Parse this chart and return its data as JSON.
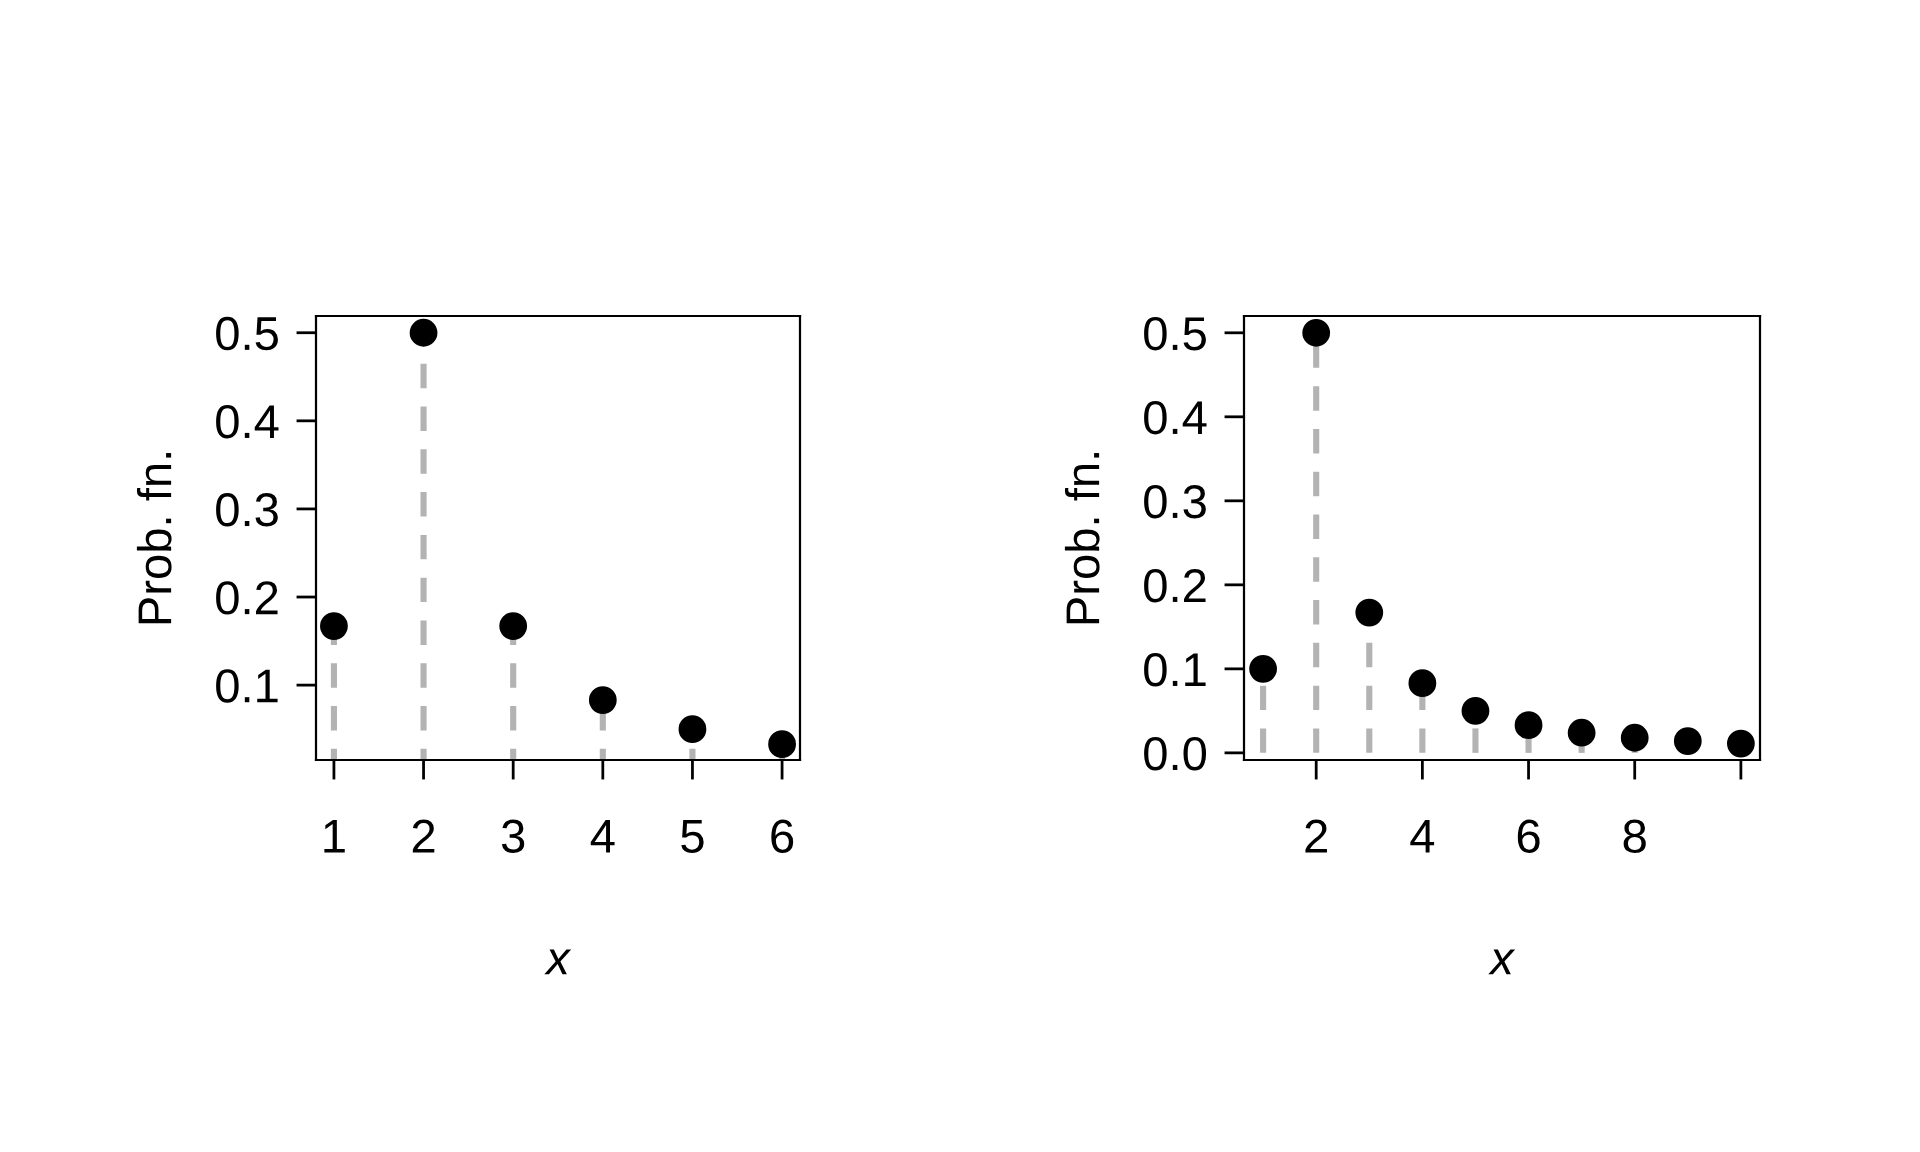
{
  "chart_data": [
    {
      "type": "lollipop",
      "xlabel": "x",
      "ylabel": "Prob. fn.",
      "marker": "circle",
      "line_style": "dashed",
      "legend": false,
      "x": [
        1,
        2,
        3,
        4,
        5,
        6
      ],
      "series": [
        {
          "color": "#000000",
          "values": [
            0.167,
            0.5,
            0.167,
            0.083,
            0.05,
            0.033
          ]
        }
      ],
      "xlim": [
        0.8,
        6.2
      ],
      "xticks": [
        1,
        2,
        3,
        4,
        5,
        6
      ],
      "ylim": [
        0.015,
        0.519
      ],
      "yticks": [
        0.1,
        0.2,
        0.3,
        0.4,
        0.5
      ]
    },
    {
      "type": "lollipop",
      "xlabel": "x",
      "ylabel": "Prob. fn.",
      "marker": "circle",
      "line_style": "dashed",
      "legend": false,
      "x": [
        1,
        2,
        3,
        4,
        5,
        6,
        7,
        8,
        9,
        10
      ],
      "series": [
        {
          "color": "#000000",
          "values": [
            0.1,
            0.5,
            0.167,
            0.083,
            0.05,
            0.033,
            0.024,
            0.018,
            0.014,
            0.011
          ]
        }
      ],
      "xlim": [
        0.64,
        10.36
      ],
      "xticks": [
        2,
        4,
        6,
        8,
        {
          "value": 10,
          "label": null
        }
      ],
      "ylim": [
        -0.0085,
        0.52
      ],
      "yticks": [
        {
          "value": 0,
          "label": "0.0"
        },
        0.1,
        0.2,
        0.3,
        0.4,
        0.5
      ]
    }
  ]
}
